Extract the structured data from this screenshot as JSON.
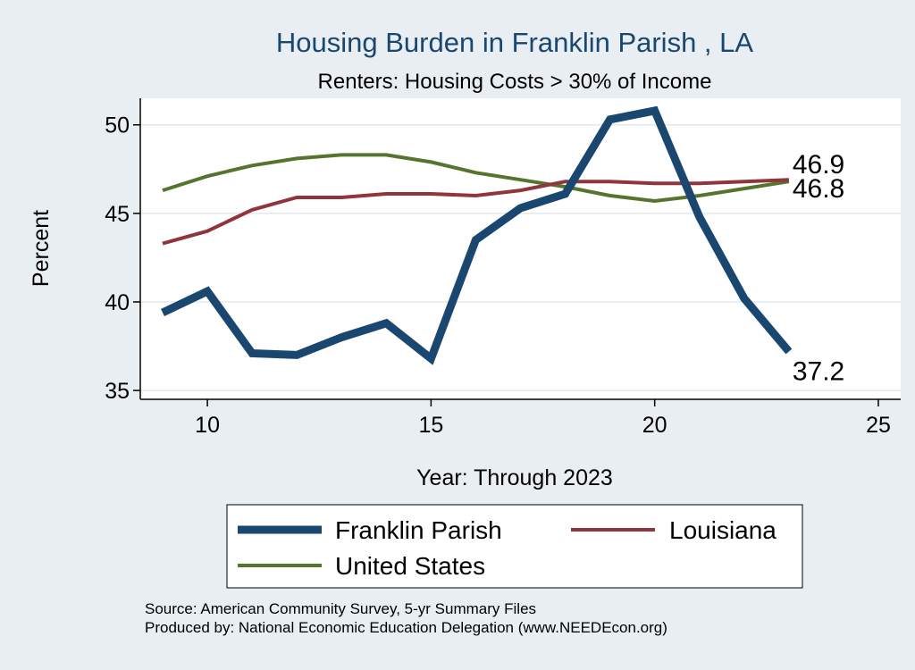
{
  "chart_data": {
    "type": "line",
    "title": "Housing Burden in Franklin Parish , LA",
    "subtitle": "Renters: Housing Costs > 30% of Income",
    "xlabel": "Year: Through 2023",
    "ylabel": "Percent",
    "xlim": [
      8.5,
      25.5
    ],
    "ylim": [
      34.5,
      51.5
    ],
    "xticks": [
      10,
      15,
      20,
      25
    ],
    "yticks": [
      35,
      40,
      45,
      50
    ],
    "grid": true,
    "legend_position": "bottom",
    "x": [
      9,
      10,
      11,
      12,
      13,
      14,
      15,
      16,
      17,
      18,
      19,
      20,
      21,
      22,
      23
    ],
    "series": [
      {
        "name": "Franklin Parish",
        "color": "#1a476f",
        "width": "thick",
        "values": [
          39.4,
          40.6,
          37.1,
          37.0,
          38.0,
          38.8,
          36.8,
          43.5,
          45.3,
          46.1,
          50.3,
          50.8,
          44.8,
          40.2,
          37.2
        ],
        "end_label": "37.2"
      },
      {
        "name": "Louisiana",
        "color": "#90353b",
        "width": "thin",
        "values": [
          43.3,
          44.0,
          45.2,
          45.9,
          45.9,
          46.1,
          46.1,
          46.0,
          46.3,
          46.8,
          46.8,
          46.7,
          46.7,
          46.8,
          46.9
        ],
        "end_label": "46.9"
      },
      {
        "name": "United States",
        "color": "#55752f",
        "width": "thin",
        "values": [
          46.3,
          47.1,
          47.7,
          48.1,
          48.3,
          48.3,
          47.9,
          47.3,
          46.9,
          46.5,
          46.0,
          45.7,
          46.0,
          46.4,
          46.8
        ],
        "end_label": "46.8"
      }
    ],
    "source_lines": [
      "Source: American Community Survey, 5-yr Summary Files",
      "Produced by: National Economic Education Delegation (www.NEEDEcon.org)"
    ]
  }
}
